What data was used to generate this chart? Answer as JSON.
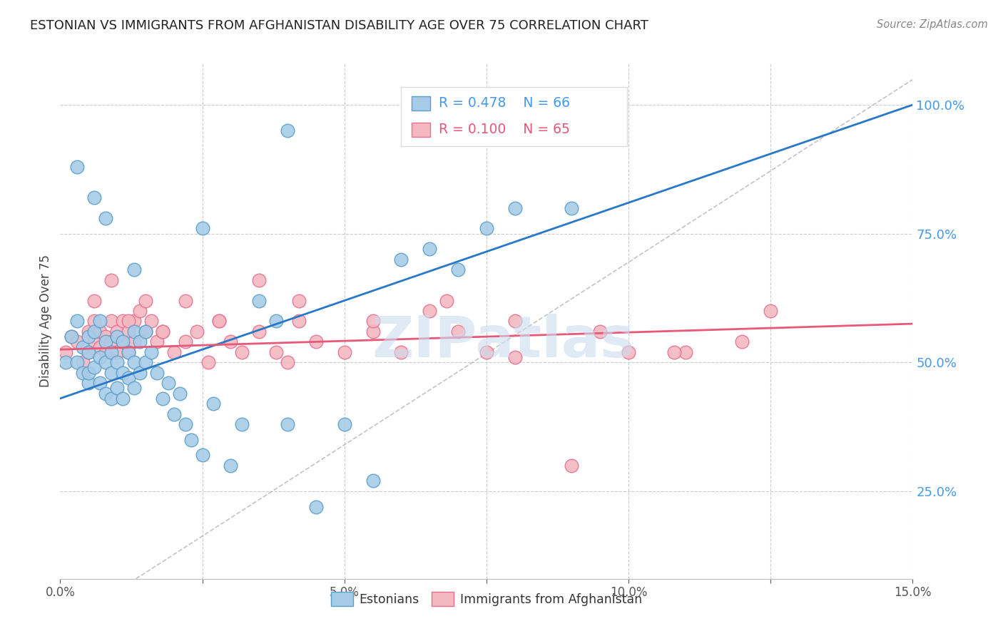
{
  "title": "ESTONIAN VS IMMIGRANTS FROM AFGHANISTAN DISABILITY AGE OVER 75 CORRELATION CHART",
  "source": "Source: ZipAtlas.com",
  "ylabel": "Disability Age Over 75",
  "xlim": [
    0.0,
    0.15
  ],
  "ylim": [
    0.08,
    1.08
  ],
  "x_ticks": [
    0.0,
    0.025,
    0.05,
    0.075,
    0.1,
    0.125,
    0.15
  ],
  "y_ticks_right": [
    0.25,
    0.5,
    0.75,
    1.0
  ],
  "legend_r1": "R = 0.478",
  "legend_n1": "N = 66",
  "legend_r2": "R = 0.100",
  "legend_n2": "N = 65",
  "legend_label1": "Estonians",
  "legend_label2": "Immigrants from Afghanistan",
  "blue_color": "#a8cce8",
  "blue_edge": "#5b9ec9",
  "pink_color": "#f4b8c1",
  "pink_edge": "#e87090",
  "line_blue": "#2878c8",
  "line_pink": "#e85878",
  "right_axis_color": "#4499ee",
  "watermark": "ZIPatlas",
  "blue_scatter_x": [
    0.001,
    0.002,
    0.003,
    0.003,
    0.004,
    0.004,
    0.005,
    0.005,
    0.005,
    0.005,
    0.006,
    0.006,
    0.007,
    0.007,
    0.007,
    0.008,
    0.008,
    0.008,
    0.009,
    0.009,
    0.009,
    0.01,
    0.01,
    0.01,
    0.011,
    0.011,
    0.011,
    0.012,
    0.012,
    0.013,
    0.013,
    0.013,
    0.014,
    0.014,
    0.015,
    0.015,
    0.016,
    0.017,
    0.018,
    0.019,
    0.02,
    0.021,
    0.022,
    0.023,
    0.025,
    0.027,
    0.03,
    0.032,
    0.035,
    0.038,
    0.04,
    0.045,
    0.05,
    0.055,
    0.06,
    0.065,
    0.07,
    0.075,
    0.08,
    0.09,
    0.003,
    0.006,
    0.008,
    0.013,
    0.025,
    0.04
  ],
  "blue_scatter_y": [
    0.5,
    0.55,
    0.58,
    0.5,
    0.53,
    0.48,
    0.52,
    0.46,
    0.55,
    0.48,
    0.56,
    0.49,
    0.58,
    0.51,
    0.46,
    0.54,
    0.5,
    0.44,
    0.52,
    0.48,
    0.43,
    0.55,
    0.5,
    0.45,
    0.54,
    0.48,
    0.43,
    0.52,
    0.47,
    0.56,
    0.5,
    0.45,
    0.54,
    0.48,
    0.56,
    0.5,
    0.52,
    0.48,
    0.43,
    0.46,
    0.4,
    0.44,
    0.38,
    0.35,
    0.32,
    0.42,
    0.3,
    0.38,
    0.62,
    0.58,
    0.38,
    0.22,
    0.38,
    0.27,
    0.7,
    0.72,
    0.68,
    0.76,
    0.8,
    0.8,
    0.88,
    0.82,
    0.78,
    0.68,
    0.76,
    0.95
  ],
  "pink_scatter_x": [
    0.001,
    0.002,
    0.003,
    0.004,
    0.005,
    0.005,
    0.006,
    0.006,
    0.007,
    0.007,
    0.008,
    0.008,
    0.009,
    0.009,
    0.01,
    0.01,
    0.011,
    0.011,
    0.012,
    0.012,
    0.013,
    0.013,
    0.014,
    0.015,
    0.016,
    0.017,
    0.018,
    0.02,
    0.022,
    0.024,
    0.026,
    0.028,
    0.03,
    0.032,
    0.035,
    0.038,
    0.04,
    0.042,
    0.045,
    0.05,
    0.055,
    0.06,
    0.065,
    0.07,
    0.075,
    0.08,
    0.09,
    0.1,
    0.11,
    0.12,
    0.006,
    0.009,
    0.012,
    0.015,
    0.018,
    0.022,
    0.028,
    0.035,
    0.042,
    0.055,
    0.068,
    0.08,
    0.095,
    0.108,
    0.125
  ],
  "pink_scatter_y": [
    0.52,
    0.55,
    0.54,
    0.5,
    0.56,
    0.52,
    0.54,
    0.58,
    0.53,
    0.56,
    0.55,
    0.52,
    0.58,
    0.54,
    0.56,
    0.52,
    0.58,
    0.54,
    0.56,
    0.52,
    0.58,
    0.54,
    0.6,
    0.56,
    0.58,
    0.54,
    0.56,
    0.52,
    0.54,
    0.56,
    0.5,
    0.58,
    0.54,
    0.52,
    0.56,
    0.52,
    0.5,
    0.58,
    0.54,
    0.52,
    0.56,
    0.52,
    0.6,
    0.56,
    0.52,
    0.51,
    0.3,
    0.52,
    0.52,
    0.54,
    0.62,
    0.66,
    0.58,
    0.62,
    0.56,
    0.62,
    0.58,
    0.66,
    0.62,
    0.58,
    0.62,
    0.58,
    0.56,
    0.52,
    0.6
  ]
}
